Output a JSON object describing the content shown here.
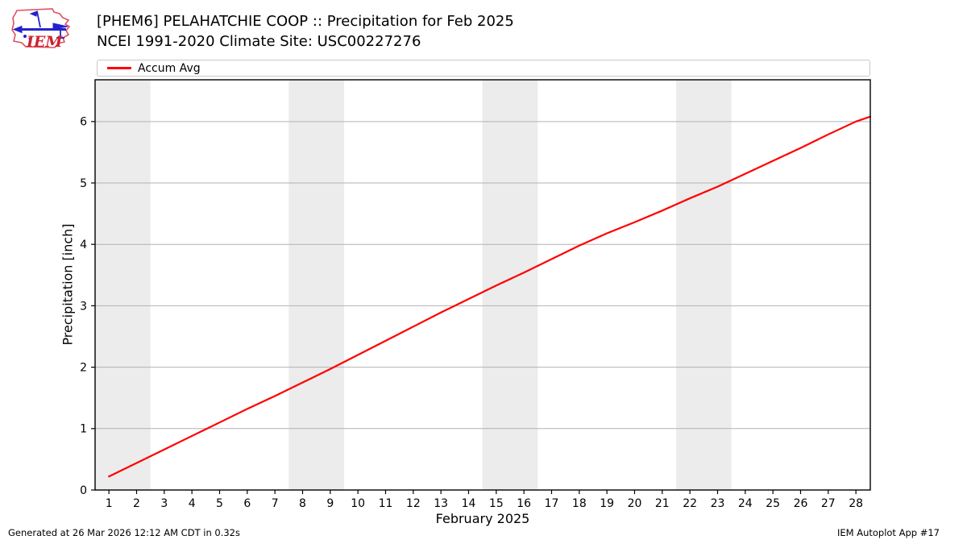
{
  "logo": {
    "text": "IEM"
  },
  "chart_data": {
    "type": "line",
    "title": "[PHEM6] PELAHATCHIE COOP :: Precipitation for Feb 2025",
    "subtitle": "NCEI 1991-2020 Climate Site: USC00227276",
    "xlabel": "February 2025",
    "ylabel": "Precipitation [inch]",
    "xlim": [
      0.5,
      28.52
    ],
    "ylim": [
      0,
      6.68
    ],
    "xticks": [
      1,
      2,
      3,
      4,
      5,
      6,
      7,
      8,
      9,
      10,
      11,
      12,
      13,
      14,
      15,
      16,
      17,
      18,
      19,
      20,
      21,
      22,
      23,
      24,
      25,
      26,
      27,
      28
    ],
    "yticks": [
      0,
      1,
      2,
      3,
      4,
      5,
      6
    ],
    "grid": "horizontal",
    "legend_position": "top-left",
    "weekend_bands": [
      [
        0.5,
        2.5
      ],
      [
        7.5,
        9.5
      ],
      [
        14.5,
        16.5
      ],
      [
        21.5,
        23.5
      ]
    ],
    "series": [
      {
        "name": "Accum Avg",
        "color": "#ff0000",
        "x": [
          1,
          2,
          3,
          4,
          5,
          6,
          7,
          8,
          9,
          10,
          11,
          12,
          13,
          14,
          15,
          16,
          17,
          18,
          19,
          20,
          21,
          22,
          23,
          24,
          25,
          26,
          27,
          28
        ],
        "values": [
          0.22,
          0.44,
          0.66,
          0.88,
          1.1,
          1.32,
          1.53,
          1.75,
          1.97,
          2.2,
          2.43,
          2.66,
          2.89,
          3.11,
          3.33,
          3.54,
          3.76,
          3.98,
          4.18,
          4.36,
          4.55,
          4.75,
          4.94,
          5.15,
          5.36,
          5.57,
          5.79,
          6.0
        ],
        "extend_to": {
          "x": 28.52,
          "value": 6.08
        }
      }
    ],
    "colors": {
      "band": "#ececec",
      "grid": "#b2b2b2",
      "frame": "#000000",
      "tick": "#000000"
    }
  },
  "footer": {
    "left": "Generated at 26 Mar 2026 12:12 AM CDT in 0.32s",
    "right": "IEM Autoplot App #17"
  }
}
